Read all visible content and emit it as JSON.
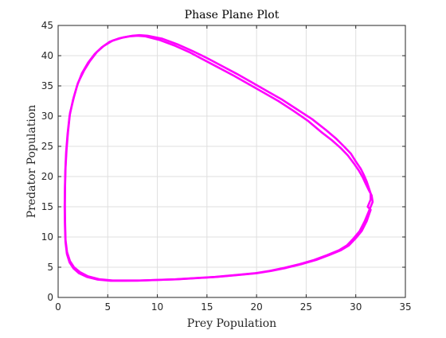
{
  "chart_data": {
    "type": "line",
    "title": "Phase Plane Plot",
    "xlabel": "Prey Population",
    "ylabel": "Predator Population",
    "xlim": [
      0,
      35
    ],
    "ylim": [
      0,
      45
    ],
    "x_ticks": [
      0,
      5,
      10,
      15,
      20,
      25,
      30,
      35
    ],
    "y_ticks": [
      0,
      5,
      10,
      15,
      20,
      25,
      30,
      35,
      40,
      45
    ],
    "grid": true,
    "series": [
      {
        "color": "#ff00ff",
        "x": [
          31.2,
          31.5,
          31.5,
          31.3,
          31.1,
          30.8,
          30.5,
          30.0,
          29.5,
          28.8,
          28.0,
          27.0,
          25.6,
          24.0,
          22.5,
          21.0,
          19.5,
          18.0,
          16.5,
          15.0,
          13.5,
          12.0,
          10.5,
          9.0,
          8.2,
          7.5,
          6.5,
          5.5,
          4.6,
          3.9,
          3.2,
          2.6,
          2.0,
          1.6,
          1.2,
          1.0,
          0.85,
          0.75,
          0.7,
          0.68,
          0.7,
          0.75,
          0.9,
          1.2,
          1.6,
          2.2,
          3.0,
          4.2,
          5.5,
          6.8,
          8.2,
          10.0,
          12.0,
          14.0,
          16.0,
          18.0,
          20.0,
          21.5,
          23.0,
          24.5,
          26.0,
          27.3,
          28.5,
          29.3,
          30.0,
          30.6,
          31.1,
          31.5
        ],
        "y": [
          15.0,
          16.2,
          17.2,
          18.2,
          19.2,
          20.3,
          21.3,
          22.5,
          23.8,
          25.0,
          26.3,
          27.7,
          29.5,
          31.2,
          32.8,
          34.2,
          35.6,
          37.0,
          38.3,
          39.6,
          40.8,
          41.9,
          42.8,
          43.3,
          43.4,
          43.3,
          43.0,
          42.5,
          41.6,
          40.6,
          39.1,
          37.5,
          35.5,
          33.2,
          30.5,
          27.5,
          24.5,
          21.5,
          18.5,
          15.5,
          12.5,
          9.5,
          7.5,
          6.0,
          5.0,
          4.2,
          3.5,
          3.0,
          2.8,
          2.8,
          2.8,
          2.9,
          3.0,
          3.2,
          3.4,
          3.7,
          4.0,
          4.4,
          4.9,
          5.5,
          6.2,
          7.0,
          7.8,
          8.6,
          9.8,
          11.0,
          12.6,
          14.5
        ]
      },
      {
        "color": "#ff00ff",
        "x": [
          31.4,
          31.7,
          31.6,
          31.3,
          31.0,
          30.7,
          30.3,
          29.8,
          29.2,
          28.5,
          27.6,
          26.5,
          25.2,
          23.7,
          22.2,
          20.7,
          19.2,
          17.7,
          16.2,
          14.7,
          13.2,
          11.7,
          10.2,
          8.8,
          8.0,
          7.2,
          6.2,
          5.2,
          4.4,
          3.7,
          3.0,
          2.4,
          1.9,
          1.5,
          1.15,
          0.95,
          0.8,
          0.72,
          0.68,
          0.66,
          0.68,
          0.74,
          0.88,
          1.15,
          1.55,
          2.1,
          2.9,
          4.0,
          5.3,
          6.6,
          8.0,
          9.8,
          11.8,
          13.8,
          15.8,
          17.8,
          19.8,
          21.3,
          22.8,
          24.3,
          25.8,
          27.1,
          28.3,
          29.1,
          29.8,
          30.4,
          30.9,
          31.4
        ],
        "y": [
          14.6,
          15.8,
          16.9,
          17.8,
          18.8,
          19.9,
          21.0,
          22.2,
          23.5,
          24.7,
          26.0,
          27.4,
          29.2,
          30.9,
          32.5,
          33.9,
          35.3,
          36.7,
          38.0,
          39.3,
          40.6,
          41.7,
          42.6,
          43.2,
          43.3,
          43.2,
          42.9,
          42.3,
          41.4,
          40.3,
          38.8,
          37.1,
          35.0,
          32.7,
          30.0,
          27.0,
          24.0,
          21.0,
          18.0,
          15.0,
          12.0,
          9.2,
          7.2,
          5.8,
          4.8,
          4.0,
          3.4,
          2.95,
          2.75,
          2.75,
          2.78,
          2.88,
          3.0,
          3.2,
          3.4,
          3.7,
          4.0,
          4.4,
          4.9,
          5.5,
          6.2,
          7.0,
          7.8,
          8.6,
          9.8,
          11.0,
          12.6,
          14.6
        ]
      }
    ]
  }
}
